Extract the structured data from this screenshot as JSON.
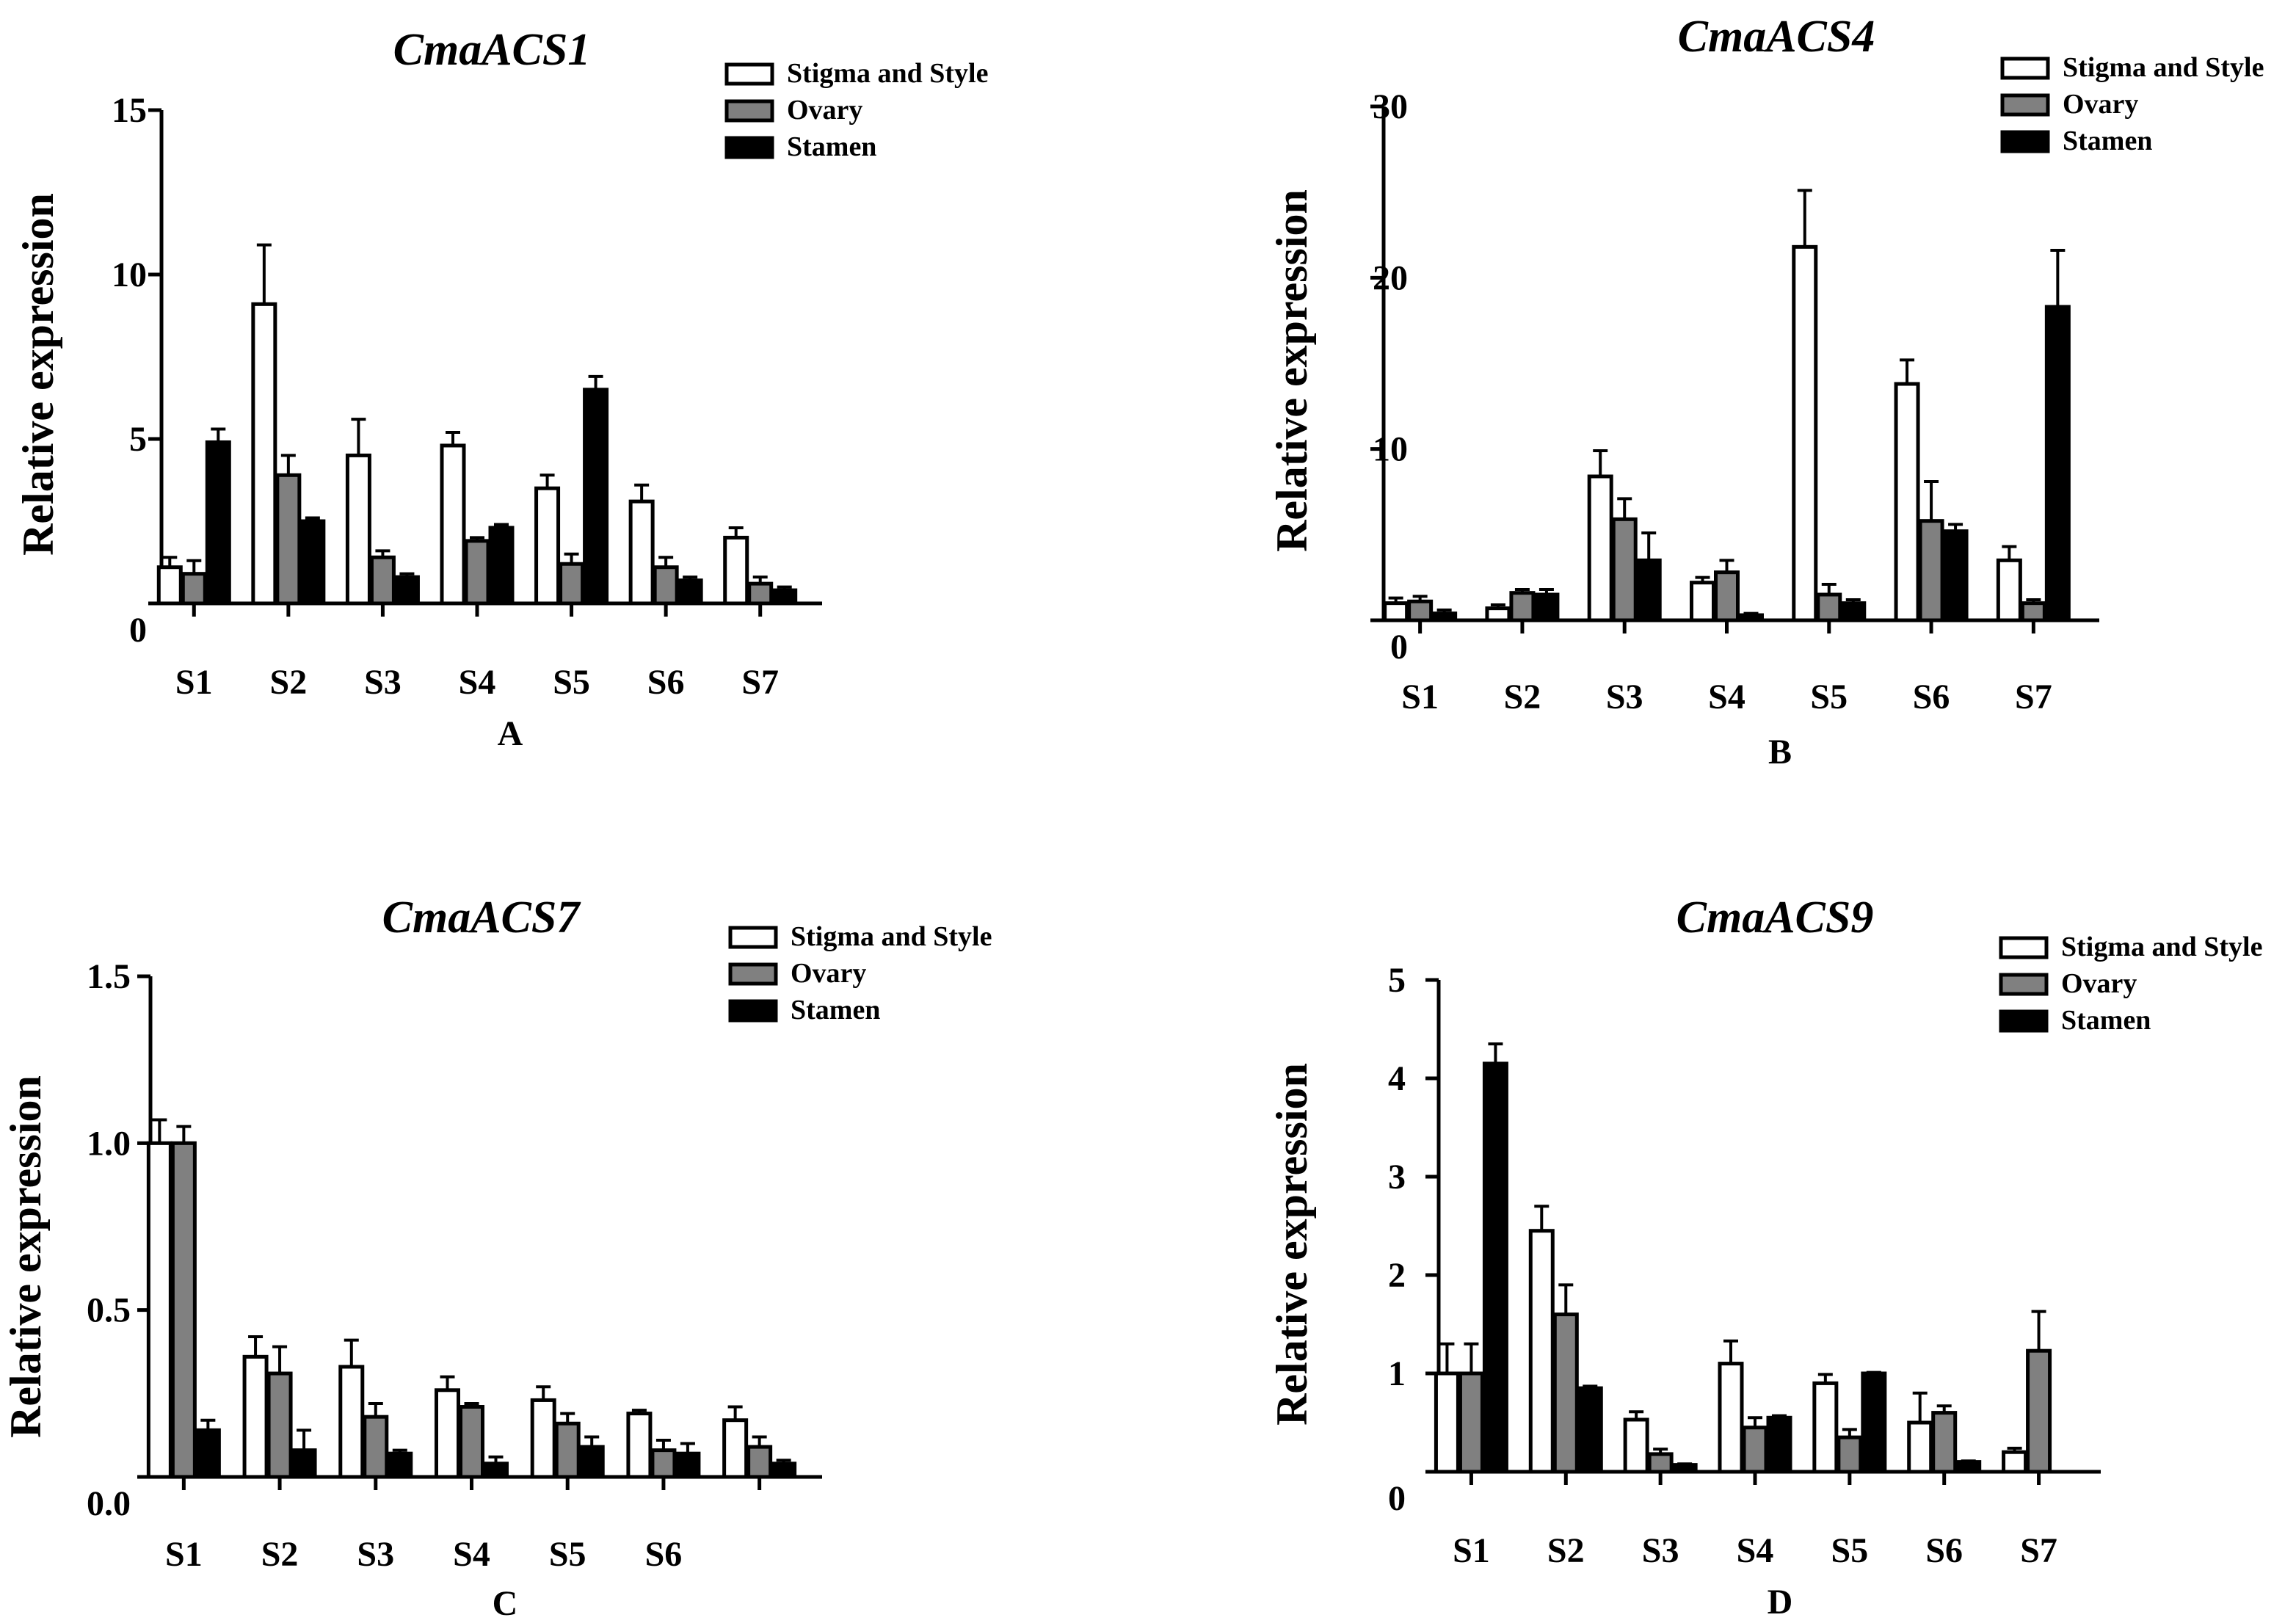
{
  "figure": {
    "series_names": [
      "Stigma and Style",
      "Ovary",
      "Stamen"
    ],
    "series_colors": [
      "#ffffff",
      "#808080",
      "#000000"
    ]
  },
  "chart_data": [
    {
      "type": "bar",
      "title": "CmaACS1",
      "panel_label": "A",
      "ylabel": "Relative expression",
      "xlabel": "",
      "ylim": [
        0,
        15
      ],
      "yticks": [
        "0",
        "5",
        "10",
        "15"
      ],
      "categories": [
        "S1",
        "S2",
        "S3",
        "S4",
        "S5",
        "S6",
        "S7"
      ],
      "series": [
        {
          "name": "Stigma and Style",
          "values": [
            1.1,
            9.1,
            4.5,
            4.8,
            3.5,
            3.1,
            2.0
          ],
          "errors": [
            0.3,
            1.8,
            1.1,
            0.4,
            0.4,
            0.5,
            0.3
          ]
        },
        {
          "name": "Ovary",
          "values": [
            0.9,
            3.9,
            1.4,
            1.9,
            1.2,
            1.1,
            0.6
          ],
          "errors": [
            0.4,
            0.6,
            0.2,
            0.1,
            0.3,
            0.3,
            0.2
          ]
        },
        {
          "name": "Stamen",
          "values": [
            4.9,
            2.5,
            0.8,
            2.3,
            6.5,
            0.7,
            0.4
          ],
          "errors": [
            0.4,
            0.1,
            0.1,
            0.1,
            0.4,
            0.1,
            0.1
          ]
        }
      ],
      "legend": [
        "Stigma and Style",
        "Ovary",
        "Stamen"
      ],
      "legend_position": "top-right"
    },
    {
      "type": "bar",
      "title": "CmaACS4",
      "panel_label": "B",
      "ylabel": "Relative expression",
      "xlabel": "",
      "ylim": [
        0,
        30
      ],
      "yticks": [
        "0",
        "10",
        "20",
        "30"
      ],
      "categories": [
        "S1",
        "S2",
        "S3",
        "S4",
        "S5",
        "S6",
        "S7"
      ],
      "series": [
        {
          "name": "Stigma and Style",
          "values": [
            1.0,
            0.7,
            8.4,
            2.2,
            21.8,
            13.8,
            3.5
          ],
          "errors": [
            0.3,
            0.2,
            1.5,
            0.3,
            3.3,
            1.4,
            0.8
          ]
        },
        {
          "name": "Ovary",
          "values": [
            1.1,
            1.6,
            5.9,
            2.8,
            1.5,
            5.8,
            1.0
          ],
          "errors": [
            0.3,
            0.2,
            1.2,
            0.7,
            0.6,
            2.3,
            0.2
          ]
        },
        {
          "name": "Stamen",
          "values": [
            0.4,
            1.5,
            3.5,
            0.3,
            1.0,
            5.2,
            18.3
          ],
          "errors": [
            0.2,
            0.3,
            1.6,
            0.1,
            0.2,
            0.4,
            3.3
          ]
        }
      ],
      "legend": [
        "Stigma and Style",
        "Ovary",
        "Stamen"
      ],
      "legend_position": "top-right"
    },
    {
      "type": "bar",
      "title": "CmaACS7",
      "panel_label": "C",
      "ylabel": "Relative expression",
      "xlabel": "",
      "ylim": [
        0,
        1.5
      ],
      "yticks": [
        "0.0",
        "0.5",
        "1.0",
        "1.5"
      ],
      "categories": [
        "S1",
        "S2",
        "S3",
        "S4",
        "S5",
        "S6",
        ""
      ],
      "series": [
        {
          "name": "Stigma and Style",
          "values": [
            1.0,
            0.36,
            0.33,
            0.26,
            0.23,
            0.19,
            0.17
          ],
          "errors": [
            0.07,
            0.06,
            0.08,
            0.04,
            0.04,
            0.01,
            0.04
          ]
        },
        {
          "name": "Ovary",
          "values": [
            1.0,
            0.31,
            0.18,
            0.21,
            0.16,
            0.08,
            0.09
          ],
          "errors": [
            0.05,
            0.08,
            0.04,
            0.01,
            0.03,
            0.03,
            0.03
          ]
        },
        {
          "name": "Stamen",
          "values": [
            0.14,
            0.08,
            0.07,
            0.04,
            0.09,
            0.07,
            0.04
          ],
          "errors": [
            0.03,
            0.06,
            0.01,
            0.02,
            0.03,
            0.03,
            0.01
          ]
        }
      ],
      "legend": [
        "Stigma and Style",
        "Ovary",
        "Stamen"
      ],
      "legend_position": "top-right"
    },
    {
      "type": "bar",
      "title": "CmaACS9",
      "panel_label": "D",
      "ylabel": "Relative expression",
      "xlabel": "",
      "ylim": [
        0,
        5
      ],
      "yticks": [
        "0",
        "1",
        "2",
        "3",
        "4",
        "5"
      ],
      "categories": [
        "S1",
        "S2",
        "S3",
        "S4",
        "S5",
        "S6",
        "S7"
      ],
      "series": [
        {
          "name": "Stigma and Style",
          "values": [
            1.0,
            2.45,
            0.53,
            1.1,
            0.9,
            0.5,
            0.2
          ],
          "errors": [
            0.3,
            0.25,
            0.08,
            0.23,
            0.09,
            0.3,
            0.04
          ]
        },
        {
          "name": "Ovary",
          "values": [
            1.0,
            1.6,
            0.18,
            0.45,
            0.35,
            0.6,
            1.23
          ],
          "errors": [
            0.3,
            0.3,
            0.05,
            0.1,
            0.08,
            0.07,
            0.4
          ]
        },
        {
          "name": "Stamen",
          "values": [
            4.15,
            0.85,
            0.07,
            0.55,
            1.0,
            0.1,
            0.0
          ],
          "errors": [
            0.2,
            0.02,
            0.01,
            0.02,
            0.01,
            0.01,
            0.0
          ]
        }
      ],
      "legend": [
        "Stigma and Style",
        "Ovary",
        "Stamen"
      ],
      "legend_position": "top-right"
    }
  ]
}
